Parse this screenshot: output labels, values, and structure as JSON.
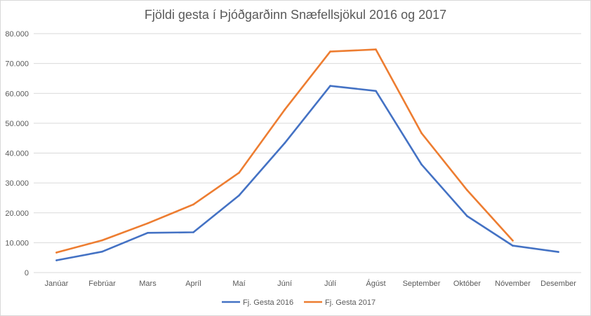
{
  "chart_data": {
    "type": "line",
    "title": "Fjöldi gesta í Þjóðgarðinn Snæfellsjökul 2016 og 2017",
    "xlabel": "",
    "ylabel": "",
    "categories": [
      "Janúar",
      "Febrúar",
      "Mars",
      "Apríl",
      "Maí",
      "Júní",
      "Júlí",
      "Ágúst",
      "September",
      "Október",
      "Nóvember",
      "Desember"
    ],
    "ylim": [
      0,
      80000
    ],
    "yticks": [
      0,
      10000,
      20000,
      30000,
      40000,
      50000,
      60000,
      70000,
      80000
    ],
    "ytick_labels": [
      "0",
      "10.000",
      "20.000",
      "30.000",
      "40.000",
      "50.000",
      "60.000",
      "70.000",
      "80.000"
    ],
    "grid": true,
    "legend_position": "bottom",
    "series": [
      {
        "name": "Fj. Gesta 2016",
        "color": "#4472c4",
        "values": [
          4100,
          7000,
          13300,
          13500,
          25800,
          43300,
          62500,
          60800,
          36200,
          18900,
          9000,
          6900
        ]
      },
      {
        "name": "Fj. Gesta 2017",
        "color": "#ed7d31",
        "values": [
          6700,
          10800,
          16500,
          22800,
          33400,
          54500,
          74000,
          74700,
          46700,
          27600,
          10700,
          null
        ]
      }
    ]
  }
}
